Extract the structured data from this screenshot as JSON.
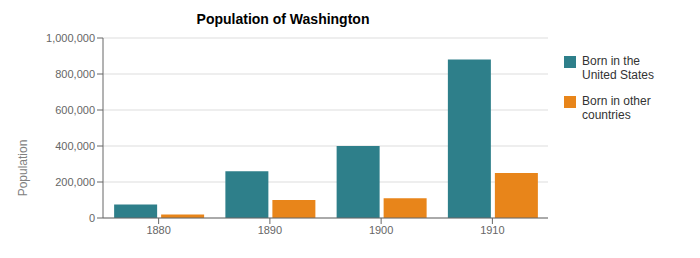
{
  "chart_data": {
    "type": "bar",
    "title": "Population of Washington",
    "ylabel": "Population",
    "categories": [
      "1880",
      "1890",
      "1900",
      "1910"
    ],
    "series": [
      {
        "name": "Born in the\nUnited States",
        "color": "#2E7F8A",
        "values": [
          75000,
          260000,
          400000,
          880000
        ]
      },
      {
        "name": "Born in other\ncountries",
        "color": "#E8851A",
        "values": [
          20000,
          100000,
          110000,
          250000
        ]
      }
    ],
    "ylim": [
      0,
      1000000
    ],
    "yticks": [
      0,
      {
        "value": 200000,
        "label": "200,000"
      },
      {
        "value": 400000,
        "label": "400,000"
      },
      {
        "value": 600000,
        "label": "600,000"
      },
      {
        "value": 800000,
        "label": "800,000"
      },
      {
        "value": 1000000,
        "label": "1,000,000"
      }
    ],
    "grid": true,
    "legend": "right"
  }
}
